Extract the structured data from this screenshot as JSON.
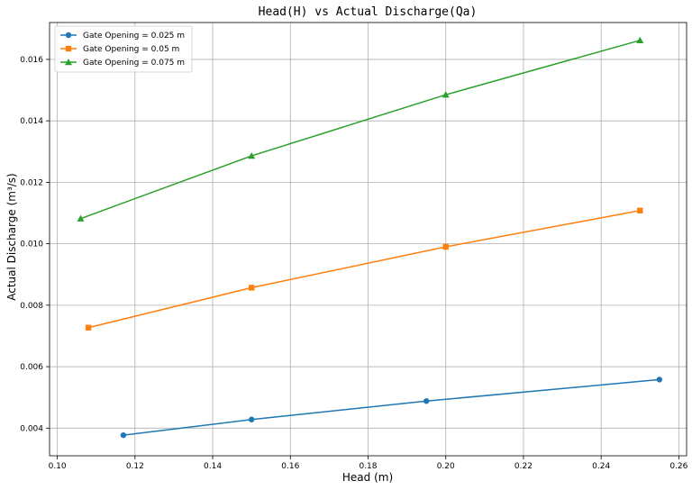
{
  "chart_data": {
    "type": "line",
    "title": "Head(H) vs Actual Discharge(Qa)",
    "xlabel": "Head (m)",
    "ylabel": "Actual Discharge (m³/s)",
    "xlim": [
      0.098,
      0.262
    ],
    "ylim": [
      0.0031,
      0.0172
    ],
    "xticks": [
      0.1,
      0.12,
      0.14,
      0.16,
      0.18,
      0.2,
      0.22,
      0.24,
      0.26
    ],
    "xtick_labels": [
      "0.10",
      "0.12",
      "0.14",
      "0.16",
      "0.18",
      "0.20",
      "0.22",
      "0.24",
      "0.26"
    ],
    "yticks": [
      0.004,
      0.006,
      0.008,
      0.01,
      0.012,
      0.014,
      0.016
    ],
    "ytick_labels": [
      "0.004",
      "0.006",
      "0.008",
      "0.010",
      "0.012",
      "0.014",
      "0.016"
    ],
    "grid": true,
    "legend_position": "top-left",
    "series": [
      {
        "name": "Gate Opening = 0.025 m",
        "color": "#1f77b4",
        "marker": "circle",
        "x": [
          0.117,
          0.15,
          0.195,
          0.255
        ],
        "y": [
          0.00377,
          0.00428,
          0.00488,
          0.00558
        ]
      },
      {
        "name": "Gate Opening = 0.05 m",
        "color": "#ff7f0e",
        "marker": "square",
        "x": [
          0.108,
          0.15,
          0.2,
          0.25
        ],
        "y": [
          0.00727,
          0.00857,
          0.0099,
          0.01108
        ]
      },
      {
        "name": "Gate Opening = 0.075 m",
        "color": "#2ca02c",
        "marker": "triangle",
        "x": [
          0.106,
          0.15,
          0.2,
          0.25
        ],
        "y": [
          0.01082,
          0.01286,
          0.01485,
          0.01662
        ]
      }
    ]
  }
}
